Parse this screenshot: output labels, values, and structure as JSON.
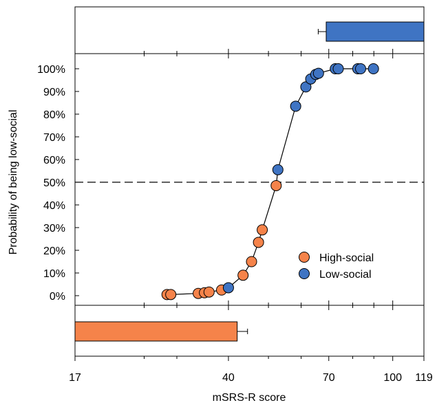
{
  "chart_data": {
    "type": "scatter",
    "title": "",
    "xlabel": "mSRS-R score",
    "ylabel": "Probability of being low-social",
    "x_scale": "log",
    "xlim": [
      17,
      119
    ],
    "ylim": [
      0,
      100
    ],
    "x_ticks": [
      17,
      40,
      70,
      100,
      119
    ],
    "x_minor_ticks": [
      25,
      30,
      50,
      60,
      80,
      90
    ],
    "y_ticks": [
      0,
      10,
      20,
      30,
      40,
      50,
      60,
      70,
      80,
      90,
      100
    ],
    "y_tick_labels": [
      "0%",
      "10%",
      "20%",
      "30%",
      "40%",
      "50%",
      "60%",
      "70%",
      "80%",
      "90%",
      "100%"
    ],
    "threshold_line": 50,
    "legend_position": "bottom-right",
    "colors": {
      "High-social": "#f5834a",
      "Low-social": "#3f74c3"
    },
    "series": [
      {
        "name": "High-social",
        "points": [
          [
            28.4,
            0.5
          ],
          [
            29.0,
            0.5
          ],
          [
            33.8,
            1.0
          ],
          [
            35.0,
            1.3
          ],
          [
            35.9,
            1.6
          ],
          [
            38.5,
            2.5
          ],
          [
            43.4,
            9.0
          ],
          [
            45.5,
            15.0
          ],
          [
            47.3,
            23.5
          ],
          [
            48.3,
            29.0
          ],
          [
            52.2,
            48.5
          ]
        ]
      },
      {
        "name": "Low-social",
        "points": [
          [
            40.0,
            3.5
          ],
          [
            52.7,
            55.5
          ],
          [
            58.2,
            83.5
          ],
          [
            61.6,
            92.0
          ],
          [
            63.3,
            95.5
          ],
          [
            65.1,
            97.5
          ],
          [
            66.1,
            98.0
          ],
          [
            72.6,
            100
          ],
          [
            73.8,
            100
          ],
          [
            82.3,
            100
          ],
          [
            83.6,
            100
          ],
          [
            89.8,
            100
          ]
        ]
      }
    ],
    "summary_bars": [
      {
        "name": "Low-social",
        "from": 69.0,
        "to": 119,
        "error_to": 66.0,
        "position": "top"
      },
      {
        "name": "High-social",
        "from": 17,
        "to": 42.0,
        "error_to": 44.5,
        "position": "bottom"
      }
    ]
  }
}
